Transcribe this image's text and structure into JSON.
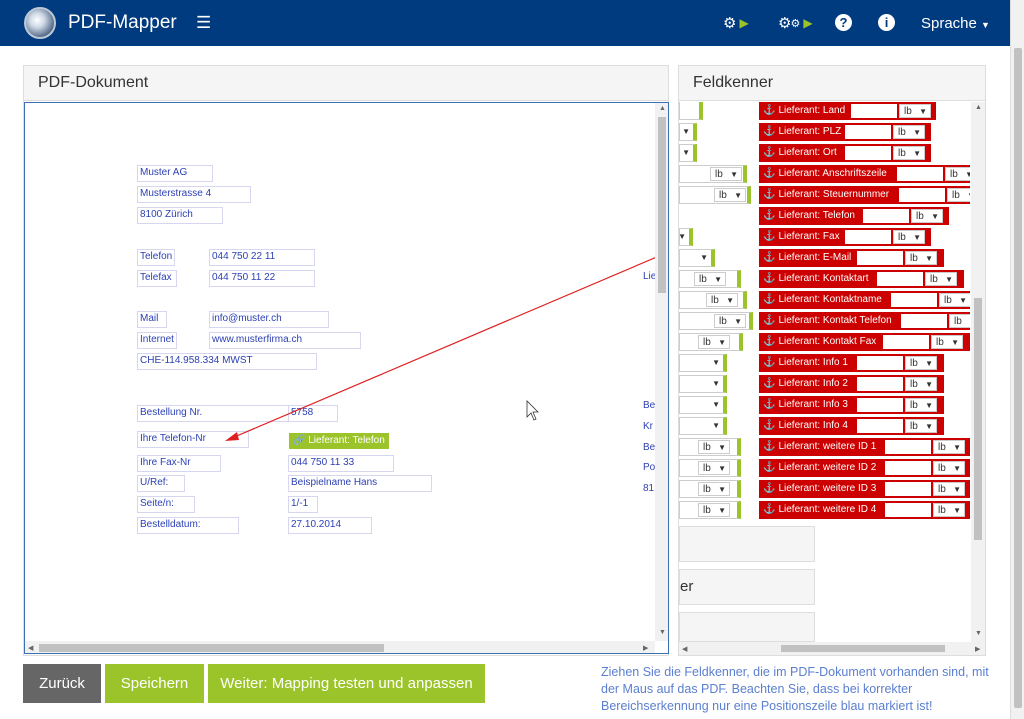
{
  "navbar": {
    "title": "PDF-Mapper",
    "menu_icon": "hamburger-icon",
    "icons": [
      "gear-play-icon",
      "gears-play-icon",
      "help-icon",
      "info-icon"
    ],
    "help_glyph": "?",
    "info_glyph": "i",
    "language": "Sprache",
    "bg_color": "#003b80"
  },
  "pdf_panel": {
    "title": "PDF-Dokument",
    "fields": [
      {
        "text": "Muster AG"
      },
      {
        "text": "Musterstrasse 4"
      },
      {
        "text": "8100 Zürich"
      },
      {
        "text": "Telefon"
      },
      {
        "text": "044 750 22 11"
      },
      {
        "text": "Telefax"
      },
      {
        "text": "044 750 11 22"
      },
      {
        "text": "Mail"
      },
      {
        "text": "info@muster.ch"
      },
      {
        "text": "Internet"
      },
      {
        "text": "www.musterfirma.ch"
      },
      {
        "text": "CHE-114.958.334 MWST"
      },
      {
        "text": "Bestellung Nr."
      },
      {
        "text": "5758"
      },
      {
        "text": "Ihre Telefon-Nr"
      },
      {
        "text": "Ihre Fax-Nr"
      },
      {
        "text": "044 750 11 33"
      },
      {
        "text": "U/Ref:"
      },
      {
        "text": "Beispielname Hans"
      },
      {
        "text": "Seite/n:"
      },
      {
        "text": "1/-1"
      },
      {
        "text": "Bestelldatum:"
      },
      {
        "text": "27.10.2014"
      },
      {
        "text": "Lie"
      },
      {
        "text": "Be"
      },
      {
        "text": "Kr"
      },
      {
        "text": "Be"
      },
      {
        "text": "Po"
      },
      {
        "text": "81"
      }
    ],
    "mapped_tag": "Lieferant: Telefon"
  },
  "feldkenner_panel": {
    "title": "Feldkenner",
    "select_value": "lb",
    "items": [
      "Lieferant: Land",
      "Lieferant: PLZ",
      "Lieferant: Ort",
      "Lieferant: Anschriftszeile",
      "Lieferant: Steuernummer",
      "Lieferant: Telefon",
      "Lieferant: Fax",
      "Lieferant: E-Mail",
      "Lieferant: Kontaktart",
      "Lieferant: Kontaktname",
      "Lieferant: Kontakt Telefon",
      "Lieferant: Kontakt Fax",
      "Lieferant: Info 1",
      "Lieferant: Info 2",
      "Lieferant: Info 3",
      "Lieferant: Info 4",
      "Lieferant: weitere ID 1",
      "Lieferant: weitere ID 2",
      "Lieferant: weitere ID 3",
      "Lieferant: weitere ID 4"
    ],
    "partial_label": "er",
    "item_color": "#cc0000",
    "mapped_color": "#9bc42a"
  },
  "buttons": {
    "back": "Zurück",
    "save": "Speichern",
    "next": "Weiter: Mapping testen und anpassen"
  },
  "hint": "Ziehen Sie die Feldkenner, die im PDF-Dokument vorhanden sind, mit der Maus auf das PDF. Beachten Sie, dass bei korrekter Bereichserkennung nur eine Positionszeile blau markiert ist!"
}
